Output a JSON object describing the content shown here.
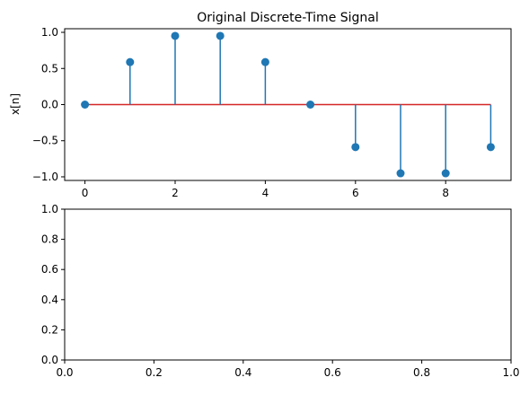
{
  "chart_data": [
    {
      "type": "stem",
      "title": "Original Discrete-Time Signal",
      "xlabel": "",
      "ylabel": "x[n]",
      "x": [
        0,
        1,
        2,
        3,
        4,
        5,
        6,
        7,
        8,
        9
      ],
      "values": [
        0.0,
        0.588,
        0.951,
        0.951,
        0.588,
        0.0,
        -0.588,
        -0.951,
        -0.951,
        -0.588
      ],
      "xlim": [
        -0.45,
        9.45
      ],
      "ylim": [
        -1.05,
        1.05
      ],
      "xticks": [
        0,
        2,
        4,
        6,
        8
      ],
      "yticks": [
        -1.0,
        -0.5,
        0.0,
        0.5,
        1.0
      ],
      "xtick_labels": [
        "0",
        "2",
        "4",
        "6",
        "8"
      ],
      "ytick_labels": [
        "−1.0",
        "−0.5",
        "0.0",
        "0.5",
        "1.0"
      ],
      "stem_color": "#1f77b4",
      "marker_color": "#1f77b4",
      "baseline_color": "#d62728",
      "grid": false
    },
    {
      "type": "empty",
      "title": "",
      "xlabel": "",
      "ylabel": "",
      "xlim": [
        0,
        1
      ],
      "ylim": [
        0,
        1
      ],
      "xticks": [
        0,
        0.2,
        0.4,
        0.6,
        0.8,
        1.0
      ],
      "yticks": [
        0,
        0.2,
        0.4,
        0.6,
        0.8,
        1.0
      ],
      "xtick_labels": [
        "0.0",
        "0.2",
        "0.4",
        "0.6",
        "0.8",
        "1.0"
      ],
      "ytick_labels": [
        "0.0",
        "0.2",
        "0.4",
        "0.6",
        "0.8",
        "1.0"
      ],
      "grid": false
    }
  ]
}
